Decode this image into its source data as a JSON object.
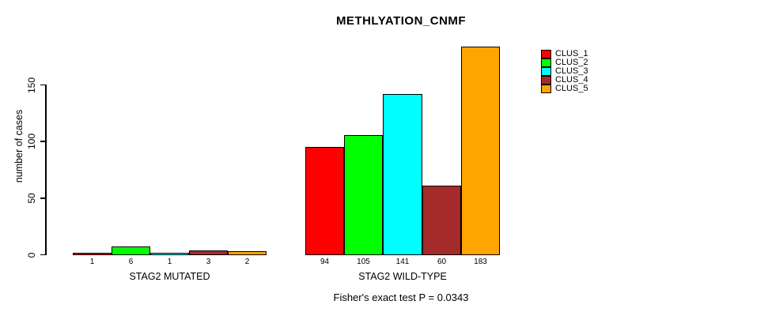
{
  "title": "METHLYATION_CNMF",
  "y_axis": {
    "label": "number of cases",
    "ticks": [
      0,
      50,
      100,
      150
    ]
  },
  "footer": "Fisher's exact test P = 0.0343",
  "legend": {
    "entries": [
      {
        "label": "CLUS_1",
        "color": "#FF0000"
      },
      {
        "label": "CLUS_2",
        "color": "#00FF00"
      },
      {
        "label": "CLUS_3",
        "color": "#00FFFF"
      },
      {
        "label": "CLUS_4",
        "color": "#A52A2A"
      },
      {
        "label": "CLUS_5",
        "color": "#FFA500"
      }
    ]
  },
  "chart_data": {
    "type": "bar",
    "title": "METHLYATION_CNMF",
    "xlabel": "",
    "ylabel": "number of cases",
    "yticks": [
      0,
      50,
      100,
      150
    ],
    "ylim": [
      0,
      190
    ],
    "grid": false,
    "legend_position": "right",
    "legend_entries": [
      "CLUS_1",
      "CLUS_2",
      "CLUS_3",
      "CLUS_4",
      "CLUS_5"
    ],
    "series_colors": [
      "#FF0000",
      "#00FF00",
      "#00FFFF",
      "#A52A2A",
      "#FFA500"
    ],
    "groups": [
      {
        "label": "STAG2 MUTATED",
        "values": [
          1,
          6,
          1,
          3,
          2
        ]
      },
      {
        "label": "STAG2 WILD-TYPE",
        "values": [
          94,
          105,
          141,
          60,
          183
        ]
      }
    ],
    "annotation": "Fisher's exact test P = 0.0343"
  }
}
